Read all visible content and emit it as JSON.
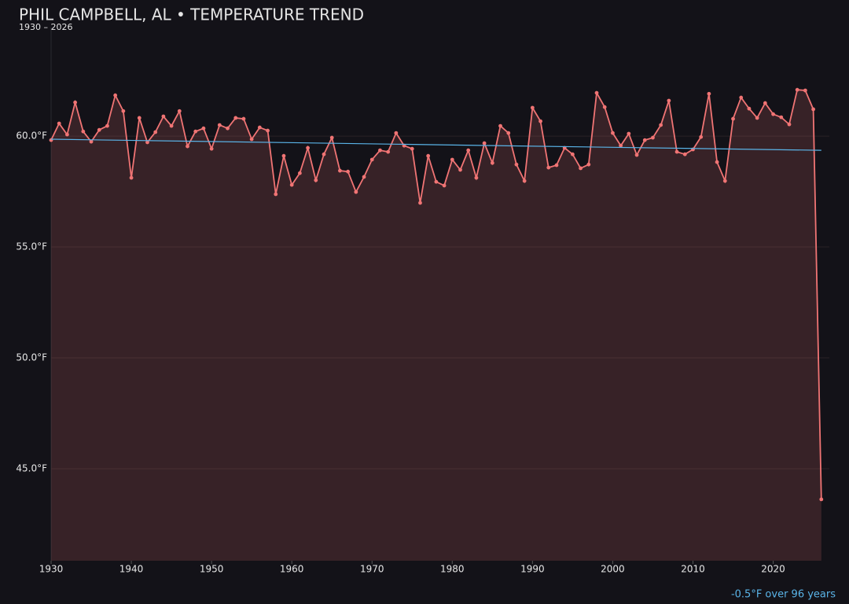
{
  "chart_data": {
    "type": "line",
    "title": "PHIL CAMPBELL, AL • TEMPERATURE TREND",
    "subtitle": "1930 – 2026",
    "x": [
      1930,
      1931,
      1932,
      1933,
      1934,
      1935,
      1936,
      1937,
      1938,
      1939,
      1940,
      1941,
      1942,
      1943,
      1944,
      1945,
      1946,
      1947,
      1948,
      1949,
      1950,
      1951,
      1952,
      1953,
      1954,
      1955,
      1956,
      1957,
      1958,
      1959,
      1960,
      1961,
      1962,
      1963,
      1964,
      1965,
      1966,
      1967,
      1968,
      1969,
      1970,
      1971,
      1972,
      1973,
      1974,
      1975,
      1976,
      1977,
      1978,
      1979,
      1980,
      1981,
      1982,
      1983,
      1984,
      1985,
      1986,
      1987,
      1988,
      1989,
      1990,
      1991,
      1992,
      1993,
      1994,
      1995,
      1996,
      1997,
      1998,
      1999,
      2000,
      2001,
      2002,
      2003,
      2004,
      2005,
      2006,
      2007,
      2008,
      2009,
      2010,
      2011,
      2012,
      2013,
      2014,
      2015,
      2016,
      2017,
      2018,
      2019,
      2020,
      2021,
      2022,
      2023,
      2024,
      2025,
      2026
    ],
    "series": [
      {
        "color": "#f07474",
        "values": [
          59.82,
          60.57,
          60.07,
          61.52,
          60.21,
          59.75,
          60.28,
          60.46,
          61.84,
          61.13,
          58.12,
          60.82,
          59.72,
          60.18,
          60.89,
          60.46,
          61.13,
          59.54,
          60.21,
          60.35,
          59.43,
          60.5,
          60.35,
          60.82,
          60.78,
          59.86,
          60.39,
          60.25,
          57.38,
          59.11,
          57.8,
          58.33,
          59.47,
          58.01,
          59.18,
          59.93,
          58.44,
          58.4,
          57.48,
          58.16,
          58.94,
          59.36,
          59.29,
          60.14,
          59.57,
          59.43,
          56.99,
          59.11,
          57.94,
          57.77,
          58.94,
          58.48,
          59.36,
          58.12,
          59.68,
          58.79,
          60.46,
          60.14,
          58.72,
          57.98,
          61.28,
          60.67,
          58.58,
          58.69,
          59.47,
          59.18,
          58.55,
          58.72,
          61.95,
          61.31,
          60.14,
          59.57,
          60.11,
          59.15,
          59.82,
          59.93,
          60.5,
          61.6,
          59.29,
          59.18,
          59.4,
          59.96,
          61.91,
          58.83,
          57.98,
          60.78,
          61.74,
          61.24,
          60.82,
          61.49,
          60.99,
          60.85,
          60.53,
          62.09,
          62.06,
          61.21,
          43.62
        ]
      }
    ],
    "trend": {
      "color": "#5ab4e8",
      "x": [
        1930,
        2026
      ],
      "values": [
        59.86,
        59.36
      ]
    },
    "annotation": "-0.5°F over 96 years",
    "xlim": [
      1930,
      2027
    ],
    "ylim": [
      40.85,
      64.72
    ],
    "xticks": [
      1930,
      1940,
      1950,
      1960,
      1970,
      1980,
      1990,
      2000,
      2010,
      2020
    ],
    "yticks": [
      {
        "value": 45,
        "label": "45.0°F"
      },
      {
        "value": 50,
        "label": "50.0°F"
      },
      {
        "value": 55,
        "label": "55.0°F"
      },
      {
        "value": 60,
        "label": "60.0°F"
      }
    ],
    "grid": true
  }
}
